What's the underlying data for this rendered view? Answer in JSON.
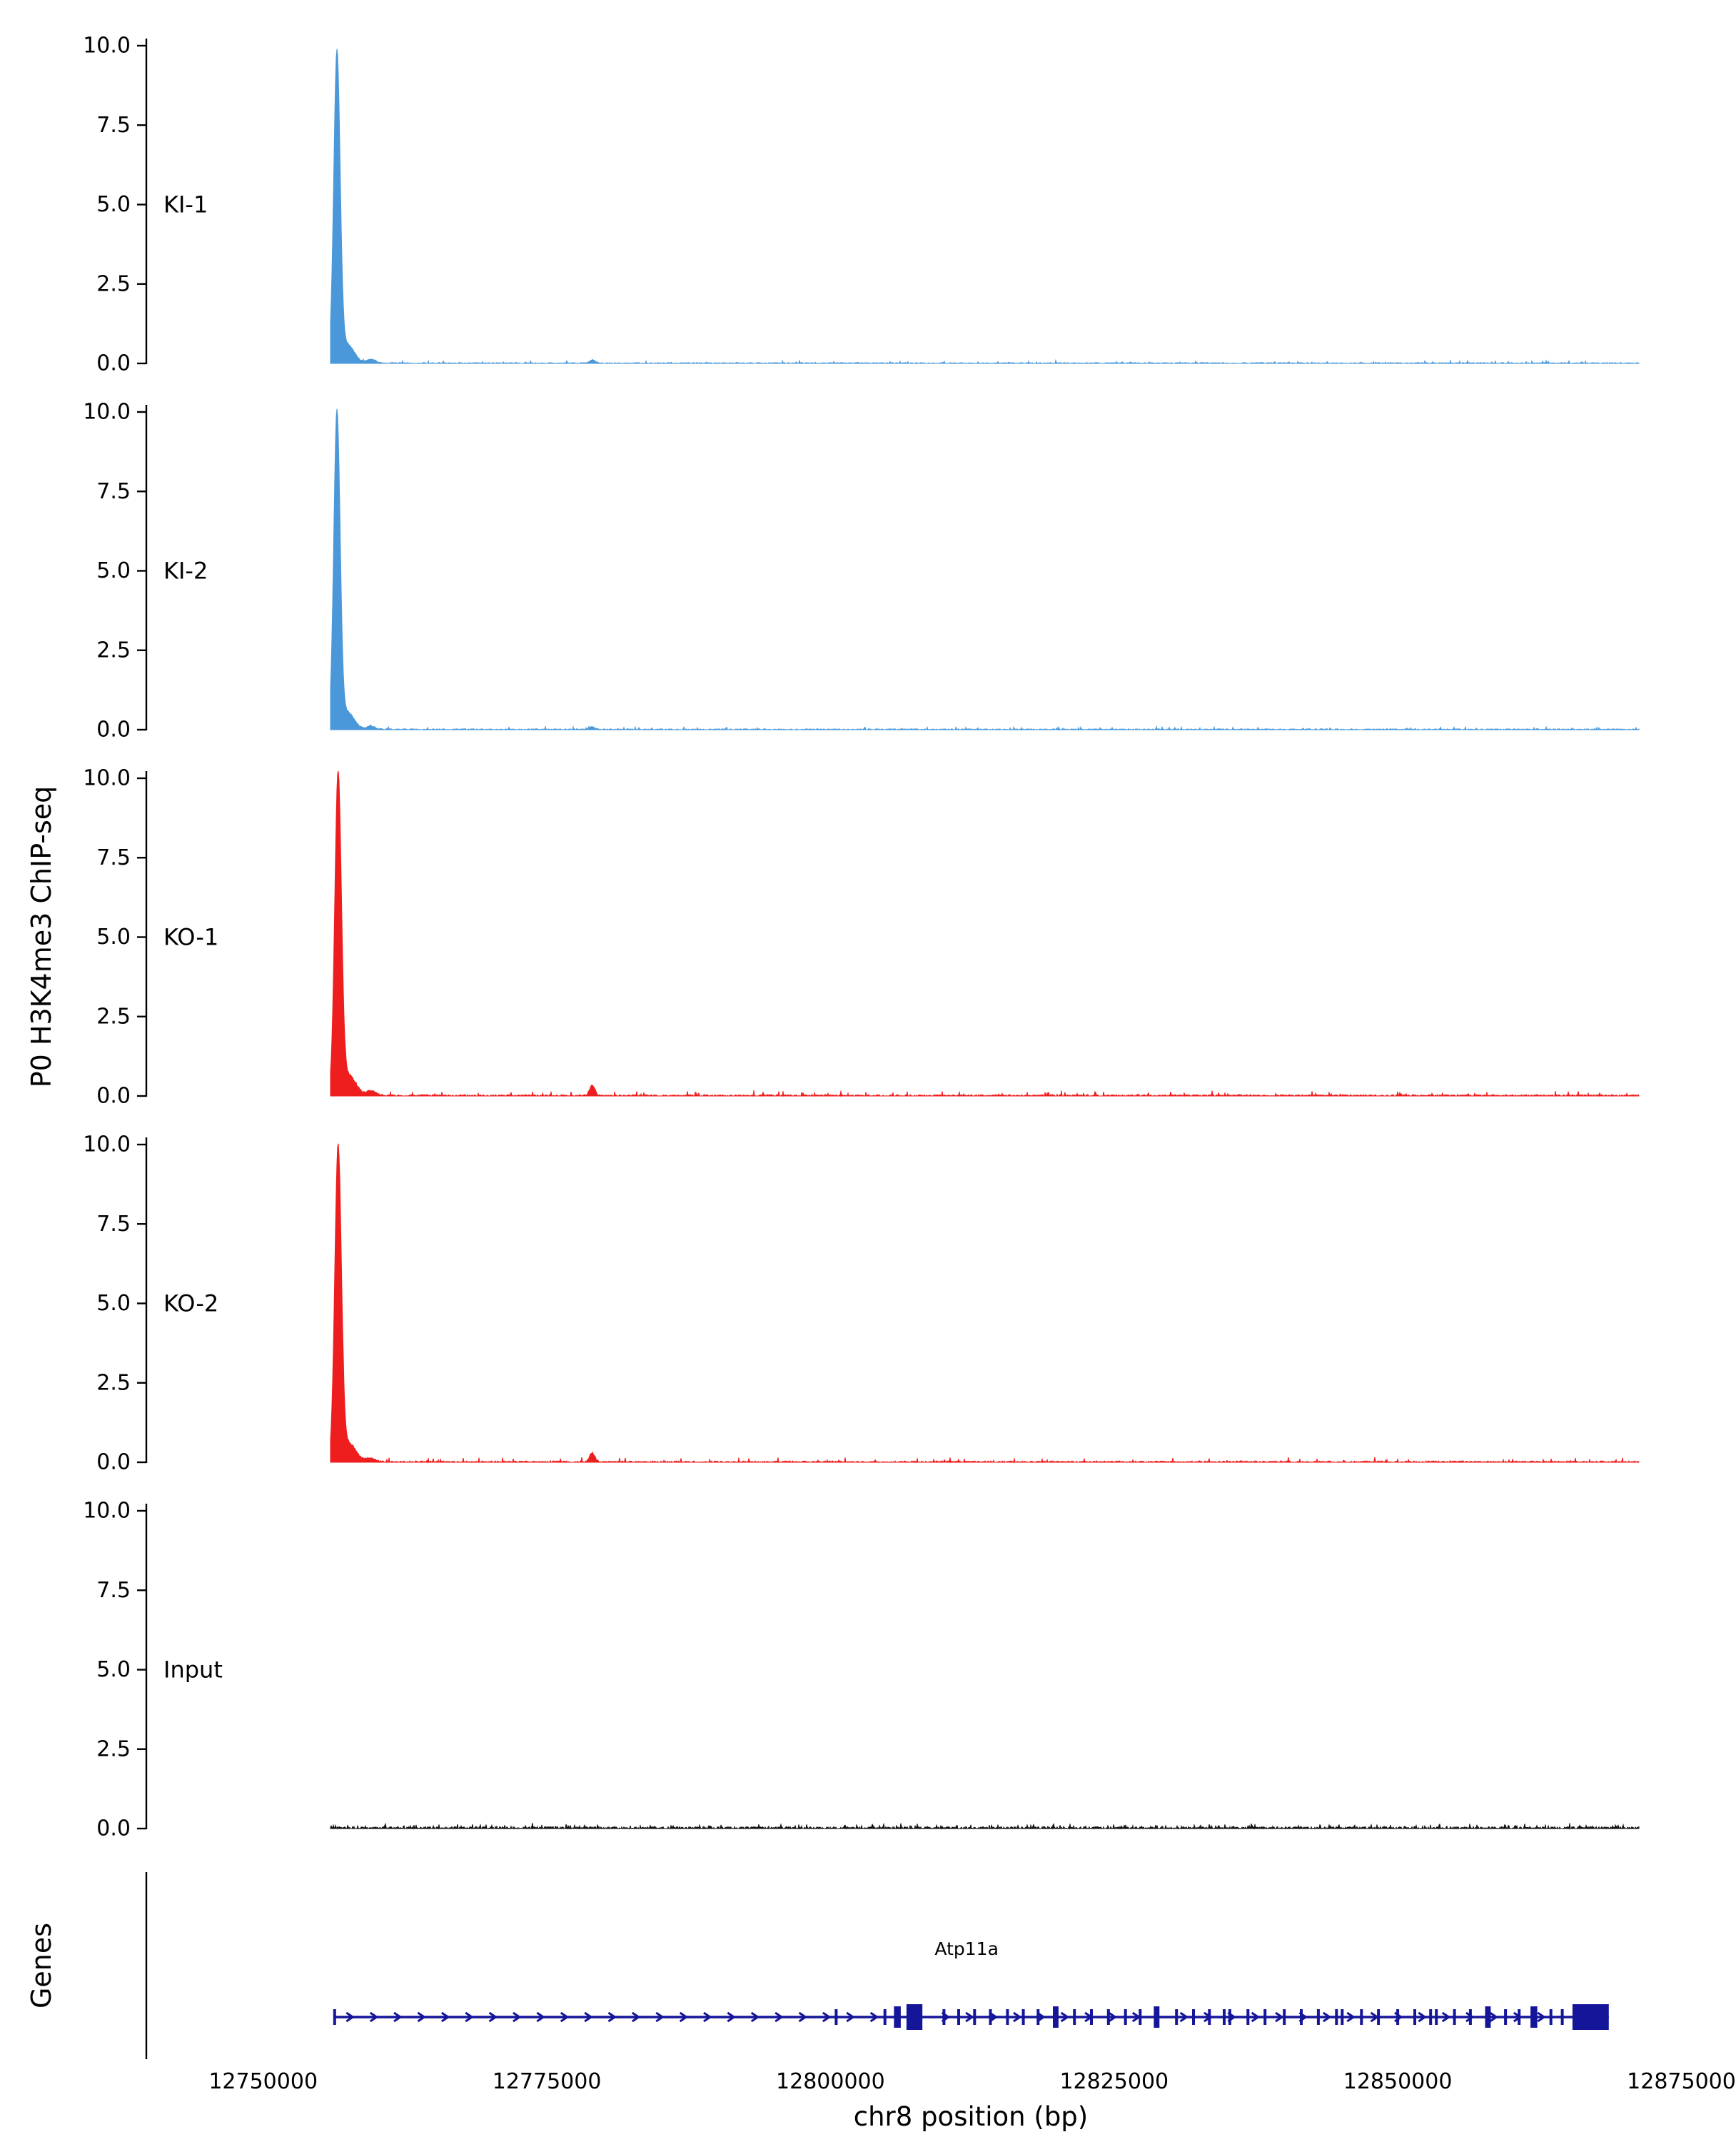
{
  "figure": {
    "ylabel": "P0 H3K4me3 ChIP-seq",
    "genes_label": "Genes",
    "xlabel": "chr8 position (bp)"
  },
  "chart_data": {
    "type": "area",
    "title": "",
    "xlabel": "chr8 position (bp)",
    "ylabel": "P0 H3K4me3 ChIP-seq",
    "x_axis": {
      "xlim": [
        12739700,
        12877800
      ],
      "ticks": [
        12750000,
        12775000,
        12800000,
        12825000,
        12850000,
        12875000
      ],
      "tick_labels": [
        "12750000",
        "12775000",
        "12800000",
        "12825000",
        "12850000",
        "12875000"
      ]
    },
    "y_axis": {
      "ylim": [
        0,
        10.0
      ],
      "ticks": [
        10,
        7.5,
        5,
        2.5,
        0
      ],
      "tick_labels": [
        "10.0",
        "7.5",
        "5.0",
        "2.5",
        "0.0"
      ]
    },
    "signal_range": [
      12755900,
      12871300
    ],
    "tracks": [
      {
        "label": "KI-1",
        "color": "#4a98d9",
        "peaks": [
          {
            "pos": 12756500,
            "height": 9.7,
            "sigma": 280
          },
          {
            "pos": 12757400,
            "height": 0.6,
            "sigma": 600
          },
          {
            "pos": 12759500,
            "height": 0.12,
            "sigma": 400
          },
          {
            "pos": 12779000,
            "height": 0.1,
            "sigma": 250
          }
        ],
        "noise": {
          "base": 0.04,
          "spike": 0.08,
          "p": 0.05,
          "seed": 11
        }
      },
      {
        "label": "KI-2",
        "color": "#4a98d9",
        "peaks": [
          {
            "pos": 12756500,
            "height": 9.9,
            "sigma": 280
          },
          {
            "pos": 12757400,
            "height": 0.55,
            "sigma": 600
          },
          {
            "pos": 12759500,
            "height": 0.1,
            "sigma": 400
          },
          {
            "pos": 12779000,
            "height": 0.08,
            "sigma": 250
          }
        ],
        "noise": {
          "base": 0.04,
          "spike": 0.08,
          "p": 0.05,
          "seed": 22
        }
      },
      {
        "label": "KO-1",
        "color": "#ee1e1e",
        "peaks": [
          {
            "pos": 12756600,
            "height": 10.0,
            "sigma": 290
          },
          {
            "pos": 12757500,
            "height": 0.65,
            "sigma": 650
          },
          {
            "pos": 12759500,
            "height": 0.15,
            "sigma": 400
          },
          {
            "pos": 12779000,
            "height": 0.33,
            "sigma": 230
          }
        ],
        "noise": {
          "base": 0.06,
          "spike": 0.14,
          "p": 0.06,
          "seed": 33
        }
      },
      {
        "label": "KO-2",
        "color": "#ee1e1e",
        "peaks": [
          {
            "pos": 12756600,
            "height": 9.8,
            "sigma": 290
          },
          {
            "pos": 12757500,
            "height": 0.6,
            "sigma": 650
          },
          {
            "pos": 12759500,
            "height": 0.12,
            "sigma": 400
          },
          {
            "pos": 12779000,
            "height": 0.28,
            "sigma": 230
          }
        ],
        "noise": {
          "base": 0.06,
          "spike": 0.14,
          "p": 0.06,
          "seed": 44
        }
      },
      {
        "label": "Input",
        "color": "#111111",
        "peaks": [],
        "noise": {
          "base": 0.08,
          "spike": 0.12,
          "p": 0.12,
          "seed": 55
        }
      }
    ],
    "gene": {
      "name": "Atp11a",
      "chrom": "chr8",
      "start": 12756300,
      "end": 12868600,
      "strand": "+",
      "color": "#15159a",
      "label_pos": 12812000,
      "exons_small": [
        12756300,
        12800500,
        12804800,
        12810000,
        12811300,
        12812700,
        12814100,
        12815600,
        12817000,
        12818300,
        12821500,
        12823000,
        12824500,
        12826000,
        12827300,
        12830500,
        12832000,
        12833400,
        12834700,
        12835200,
        12836800,
        12838300,
        12840000,
        12841500,
        12843000,
        12844600,
        12845100,
        12846800,
        12848300,
        12850000,
        12851500,
        12852900,
        12853400,
        12855000,
        12856400,
        12859500,
        12860700,
        12863500,
        12864500
      ],
      "exons_medium": [
        [
          12805600,
          12806200
        ],
        [
          12819600,
          12820100
        ],
        [
          12828500,
          12829000
        ],
        [
          12857700,
          12858200
        ],
        [
          12861700,
          12862300
        ]
      ],
      "exons_large": [
        [
          12806700,
          12808100
        ],
        [
          12865400,
          12868600
        ]
      ]
    }
  }
}
